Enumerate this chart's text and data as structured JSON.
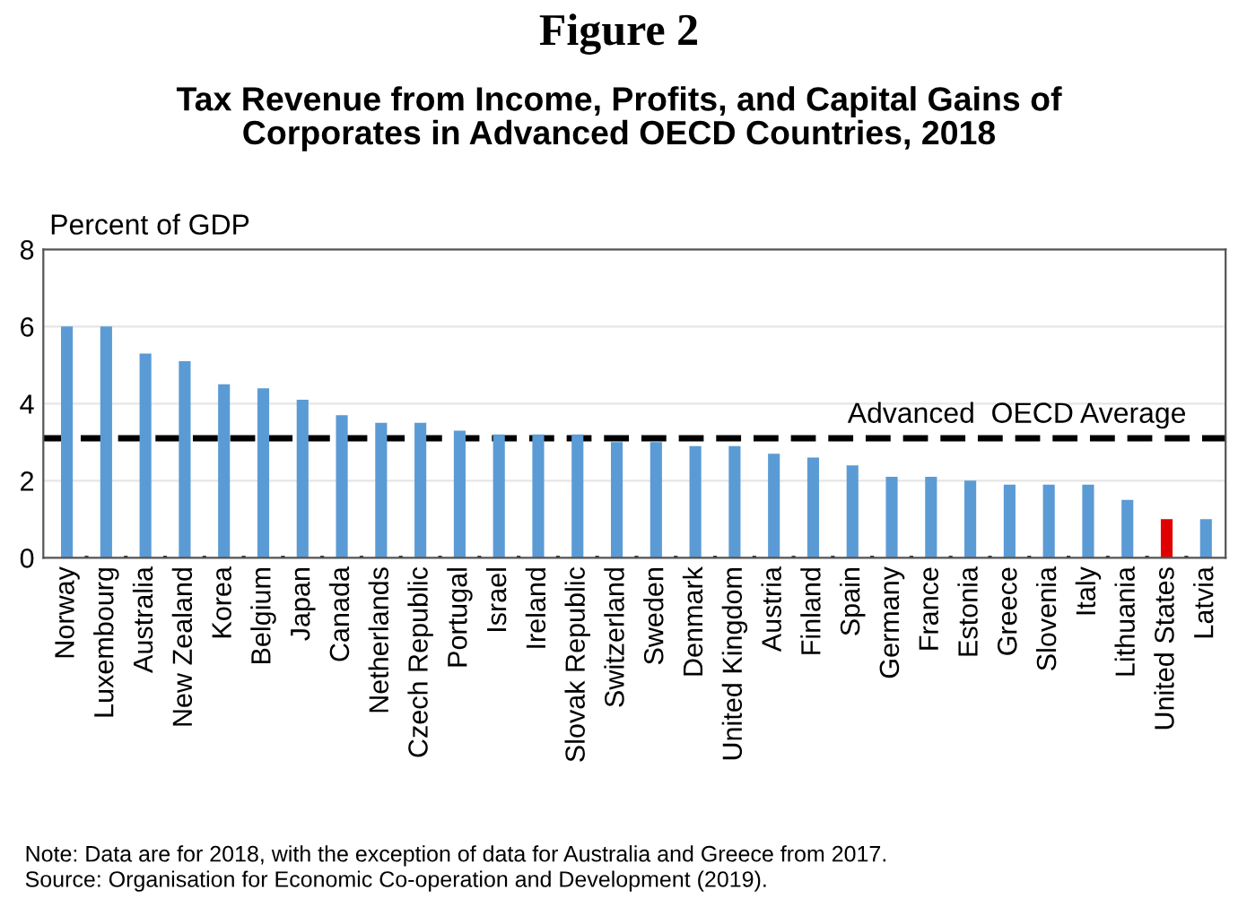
{
  "chart_data": {
    "type": "bar",
    "title": "Tax Revenue from Income, Profits, and Capital Gains of\nCorporates in Advanced OECD Countries, 2018",
    "subtitle": "Figure 2",
    "ylabel": "Percent of GDP",
    "categories": [
      "Norway",
      "Luxembourg",
      "Australia",
      "New Zealand",
      "Korea",
      "Belgium",
      "Japan",
      "Canada",
      "Netherlands",
      "Czech Republic",
      "Portugal",
      "Israel",
      "Ireland",
      "Slovak Republic",
      "Switzerland",
      "Sweden",
      "Denmark",
      "United Kingdom",
      "Austria",
      "Finland",
      "Spain",
      "Germany",
      "France",
      "Estonia",
      "Greece",
      "Slovenia",
      "Italy",
      "Lithuania",
      "United States",
      "Latvia"
    ],
    "values": [
      6.0,
      6.0,
      5.3,
      5.1,
      4.5,
      4.4,
      4.1,
      3.7,
      3.5,
      3.5,
      3.3,
      3.2,
      3.2,
      3.2,
      3.0,
      3.0,
      2.9,
      2.9,
      2.7,
      2.6,
      2.4,
      2.1,
      2.1,
      2.0,
      1.9,
      1.9,
      1.9,
      1.5,
      1.0,
      1.0
    ],
    "colors": [
      "#5b9bd5",
      "#5b9bd5",
      "#5b9bd5",
      "#5b9bd5",
      "#5b9bd5",
      "#5b9bd5",
      "#5b9bd5",
      "#5b9bd5",
      "#5b9bd5",
      "#5b9bd5",
      "#5b9bd5",
      "#5b9bd5",
      "#5b9bd5",
      "#5b9bd5",
      "#5b9bd5",
      "#5b9bd5",
      "#5b9bd5",
      "#5b9bd5",
      "#5b9bd5",
      "#5b9bd5",
      "#5b9bd5",
      "#5b9bd5",
      "#5b9bd5",
      "#5b9bd5",
      "#5b9bd5",
      "#5b9bd5",
      "#5b9bd5",
      "#5b9bd5",
      "#e00000",
      "#5b9bd5"
    ],
    "ylim": [
      0,
      8
    ],
    "yticks": [
      0,
      2,
      4,
      6,
      8
    ],
    "grid": "y",
    "ref_lines": [
      {
        "axis": "y",
        "value": 3.1,
        "label": "Advanced  OECD Average",
        "color": "#000000",
        "line_style": "dashed"
      }
    ],
    "annotations": [
      "Note: Data are for 2018, with the exception of data for Australia and Greece from 2017.",
      "Source: Organisation for Economic Co-operation and Development (2019)."
    ]
  }
}
